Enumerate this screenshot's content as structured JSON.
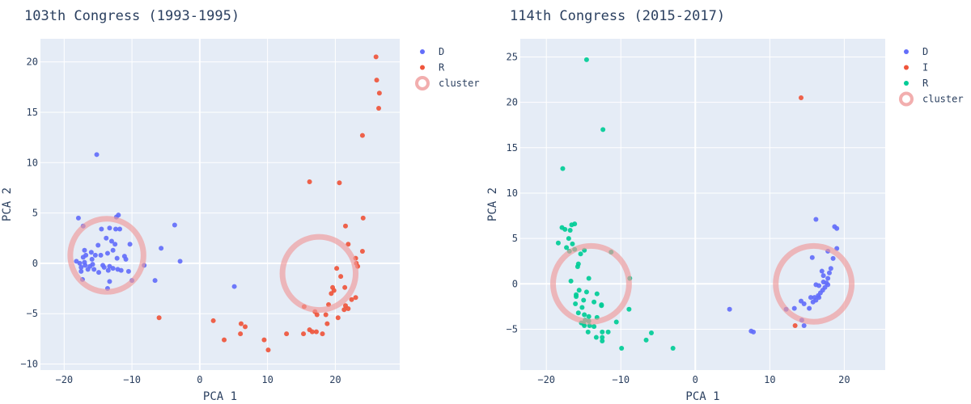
{
  "chart_data": [
    {
      "type": "scatter",
      "title": "103th Congress (1993-1995)",
      "xlabel": "PCA 1",
      "ylabel": "PCA 2",
      "xlim": [
        -23.5,
        29.5
      ],
      "ylim": [
        -10.6,
        22.3
      ],
      "xticks": [
        -20,
        -10,
        0,
        10,
        20
      ],
      "yticks": [
        -10,
        -5,
        0,
        5,
        10,
        15,
        20
      ],
      "grid": true,
      "legend_position": "right",
      "series": [
        {
          "name": "D",
          "color": "#636efa",
          "points": [
            [
              -15.2,
              10.8
            ],
            [
              -17.9,
              4.5
            ],
            [
              -17.2,
              3.7
            ],
            [
              -12.3,
              4.6
            ],
            [
              -12.0,
              4.8
            ],
            [
              -3.7,
              3.8
            ],
            [
              -13.3,
              3.5
            ],
            [
              -12.4,
              3.4
            ],
            [
              -11.8,
              3.4
            ],
            [
              -14.5,
              3.4
            ],
            [
              -13.8,
              2.5
            ],
            [
              -13.0,
              2.2
            ],
            [
              -15.0,
              1.8
            ],
            [
              -12.5,
              1.9
            ],
            [
              -12.8,
              1.3
            ],
            [
              -16.0,
              1.1
            ],
            [
              -17.0,
              1.3
            ],
            [
              -10.3,
              1.9
            ],
            [
              -5.7,
              1.5
            ],
            [
              -13.6,
              1.0
            ],
            [
              -14.6,
              0.8
            ],
            [
              -15.4,
              0.8
            ],
            [
              -16.8,
              0.8
            ],
            [
              -17.2,
              0.6
            ],
            [
              -11.1,
              0.7
            ],
            [
              -12.2,
              0.5
            ],
            [
              -10.9,
              0.4
            ],
            [
              -15.9,
              0.4
            ],
            [
              -17.0,
              0.1
            ],
            [
              -16.9,
              -0.2
            ],
            [
              -18.2,
              0.2
            ],
            [
              -17.7,
              0.0
            ],
            [
              -16.2,
              -0.3
            ],
            [
              -15.8,
              -0.1
            ],
            [
              -14.3,
              -0.2
            ],
            [
              -14.1,
              -0.4
            ],
            [
              -13.3,
              -0.3
            ],
            [
              -12.8,
              -0.5
            ],
            [
              -11.6,
              -0.7
            ],
            [
              -17.5,
              -0.4
            ],
            [
              -17.5,
              -0.8
            ],
            [
              -16.5,
              -0.6
            ],
            [
              -15.6,
              -0.6
            ],
            [
              -14.9,
              -0.9
            ],
            [
              -13.5,
              -0.7
            ],
            [
              -12.1,
              -0.6
            ],
            [
              -10.5,
              -0.8
            ],
            [
              -8.2,
              -0.2
            ],
            [
              -2.9,
              0.2
            ],
            [
              -17.3,
              -1.6
            ],
            [
              -10.0,
              -1.7
            ],
            [
              -13.3,
              -1.8
            ],
            [
              -6.6,
              -1.7
            ],
            [
              -13.6,
              -2.5
            ],
            [
              5.1,
              -2.3
            ]
          ]
        },
        {
          "name": "R",
          "color": "#ef553b",
          "points": [
            [
              26.0,
              20.5
            ],
            [
              26.1,
              18.2
            ],
            [
              26.5,
              16.9
            ],
            [
              26.4,
              15.4
            ],
            [
              24.0,
              12.7
            ],
            [
              16.2,
              8.1
            ],
            [
              20.6,
              8.0
            ],
            [
              24.1,
              4.5
            ],
            [
              21.5,
              3.7
            ],
            [
              21.9,
              1.9
            ],
            [
              24.0,
              1.2
            ],
            [
              23.0,
              0.5
            ],
            [
              23.1,
              0.0
            ],
            [
              20.2,
              -0.5
            ],
            [
              23.3,
              -0.3
            ],
            [
              20.8,
              -1.3
            ],
            [
              21.4,
              -2.4
            ],
            [
              19.6,
              -2.4
            ],
            [
              19.8,
              -2.7
            ],
            [
              19.4,
              -3.0
            ],
            [
              23.0,
              -3.4
            ],
            [
              22.4,
              -3.6
            ],
            [
              21.5,
              -4.2
            ],
            [
              21.9,
              -4.5
            ],
            [
              21.3,
              -4.6
            ],
            [
              19.0,
              -4.1
            ],
            [
              15.4,
              -4.3
            ],
            [
              17.0,
              -4.8
            ],
            [
              17.3,
              -5.1
            ],
            [
              18.6,
              -5.1
            ],
            [
              20.4,
              -5.4
            ],
            [
              -6.0,
              -5.4
            ],
            [
              2.0,
              -5.7
            ],
            [
              6.1,
              -6.0
            ],
            [
              6.7,
              -6.3
            ],
            [
              18.8,
              -6.0
            ],
            [
              16.2,
              -6.6
            ],
            [
              16.6,
              -6.8
            ],
            [
              17.2,
              -6.8
            ],
            [
              15.3,
              -7.0
            ],
            [
              12.8,
              -7.0
            ],
            [
              18.1,
              -7.0
            ],
            [
              6.0,
              -7.0
            ],
            [
              3.6,
              -7.6
            ],
            [
              9.5,
              -7.6
            ],
            [
              10.1,
              -8.6
            ]
          ]
        }
      ],
      "clusters": [
        {
          "name": "cluster",
          "cx": -13.7,
          "cy": 0.8,
          "r": 5.4,
          "color": "#ef9a9a"
        },
        {
          "name": "cluster",
          "cx": 17.6,
          "cy": -1.0,
          "r": 5.4,
          "color": "#ef9a9a"
        }
      ],
      "legend": [
        "D",
        "R",
        "cluster"
      ]
    },
    {
      "type": "scatter",
      "title": "114th Congress (2015-2017)",
      "xlabel": "PCA 1",
      "ylabel": "PCA 2",
      "xlim": [
        -23.5,
        25.5
      ],
      "ylim": [
        -9.5,
        27.0
      ],
      "xticks": [
        -20,
        -10,
        0,
        10,
        20
      ],
      "yticks": [
        -5,
        0,
        5,
        10,
        15,
        20,
        25
      ],
      "grid": true,
      "legend_position": "right",
      "series": [
        {
          "name": "D",
          "color": "#636efa",
          "points": [
            [
              16.2,
              7.1
            ],
            [
              18.7,
              6.3
            ],
            [
              19.0,
              6.1
            ],
            [
              19.0,
              3.9
            ],
            [
              17.8,
              3.6
            ],
            [
              15.7,
              2.9
            ],
            [
              18.5,
              2.8
            ],
            [
              17.0,
              1.4
            ],
            [
              18.2,
              1.7
            ],
            [
              17.2,
              0.9
            ],
            [
              18.0,
              1.2
            ],
            [
              17.8,
              0.6
            ],
            [
              17.6,
              0.1
            ],
            [
              17.8,
              -0.1
            ],
            [
              17.2,
              0.2
            ],
            [
              16.6,
              -0.2
            ],
            [
              17.4,
              -0.4
            ],
            [
              16.2,
              -0.1
            ],
            [
              17.1,
              -0.7
            ],
            [
              16.8,
              -1.0
            ],
            [
              16.5,
              -1.3
            ],
            [
              16.0,
              -1.5
            ],
            [
              16.6,
              -1.5
            ],
            [
              15.5,
              -1.5
            ],
            [
              16.2,
              -1.8
            ],
            [
              15.8,
              -2.0
            ],
            [
              14.2,
              -1.9
            ],
            [
              14.6,
              -2.2
            ],
            [
              13.3,
              -2.7
            ],
            [
              15.3,
              -2.7
            ],
            [
              12.2,
              -2.8
            ],
            [
              4.6,
              -2.8
            ],
            [
              14.3,
              -4.0
            ],
            [
              14.6,
              -4.6
            ],
            [
              7.5,
              -5.2
            ],
            [
              7.8,
              -5.3
            ]
          ]
        },
        {
          "name": "I",
          "color": "#ef553b",
          "points": [
            [
              14.2,
              20.5
            ],
            [
              13.4,
              -4.6
            ]
          ]
        },
        {
          "name": "R",
          "color": "#00cc96",
          "points": [
            [
              -14.6,
              24.7
            ],
            [
              -12.4,
              17.0
            ],
            [
              -17.8,
              12.7
            ],
            [
              -16.2,
              6.6
            ],
            [
              -16.6,
              6.5
            ],
            [
              -17.9,
              6.2
            ],
            [
              -17.5,
              6.0
            ],
            [
              -16.8,
              5.9
            ],
            [
              -17.0,
              5.0
            ],
            [
              -18.4,
              4.5
            ],
            [
              -17.3,
              4.0
            ],
            [
              -16.5,
              4.4
            ],
            [
              -16.2,
              3.8
            ],
            [
              -14.9,
              3.7
            ],
            [
              -16.9,
              3.6
            ],
            [
              -11.3,
              3.5
            ],
            [
              -15.4,
              3.3
            ],
            [
              -15.7,
              2.2
            ],
            [
              -15.8,
              1.9
            ],
            [
              -14.3,
              0.6
            ],
            [
              -8.8,
              0.6
            ],
            [
              -16.7,
              0.3
            ],
            [
              -15.6,
              -0.7
            ],
            [
              -16.0,
              -1.2
            ],
            [
              -14.6,
              -0.9
            ],
            [
              -13.2,
              -1.1
            ],
            [
              -15.0,
              -1.8
            ],
            [
              -16.0,
              -1.4
            ],
            [
              -13.6,
              -2.0
            ],
            [
              -12.6,
              -2.3
            ],
            [
              -16.1,
              -2.2
            ],
            [
              -15.2,
              -2.6
            ],
            [
              -15.7,
              -3.2
            ],
            [
              -14.9,
              -3.4
            ],
            [
              -14.3,
              -3.6
            ],
            [
              -12.6,
              -2.4
            ],
            [
              -8.9,
              -2.8
            ],
            [
              -13.2,
              -3.7
            ],
            [
              -14.8,
              -4.0
            ],
            [
              -14.3,
              -4.1
            ],
            [
              -15.3,
              -4.3
            ],
            [
              -14.9,
              -4.6
            ],
            [
              -10.6,
              -4.2
            ],
            [
              -14.2,
              -4.6
            ],
            [
              -15.0,
              -4.4
            ],
            [
              -11.7,
              -5.3
            ],
            [
              -13.6,
              -4.7
            ],
            [
              -12.5,
              -5.3
            ],
            [
              -14.4,
              -5.3
            ],
            [
              -13.3,
              -5.9
            ],
            [
              -12.5,
              -5.9
            ],
            [
              -12.5,
              -6.3
            ],
            [
              -5.9,
              -5.4
            ],
            [
              -6.6,
              -6.2
            ],
            [
              -3.0,
              -7.1
            ],
            [
              -9.9,
              -7.1
            ]
          ]
        }
      ],
      "clusters": [
        {
          "name": "cluster",
          "cx": -14.0,
          "cy": 0.0,
          "r": 5.1,
          "color": "#ef9a9a"
        },
        {
          "name": "cluster",
          "cx": 15.9,
          "cy": 0.0,
          "r": 5.1,
          "color": "#ef9a9a"
        }
      ],
      "legend": [
        "D",
        "I",
        "R",
        "cluster"
      ]
    }
  ]
}
